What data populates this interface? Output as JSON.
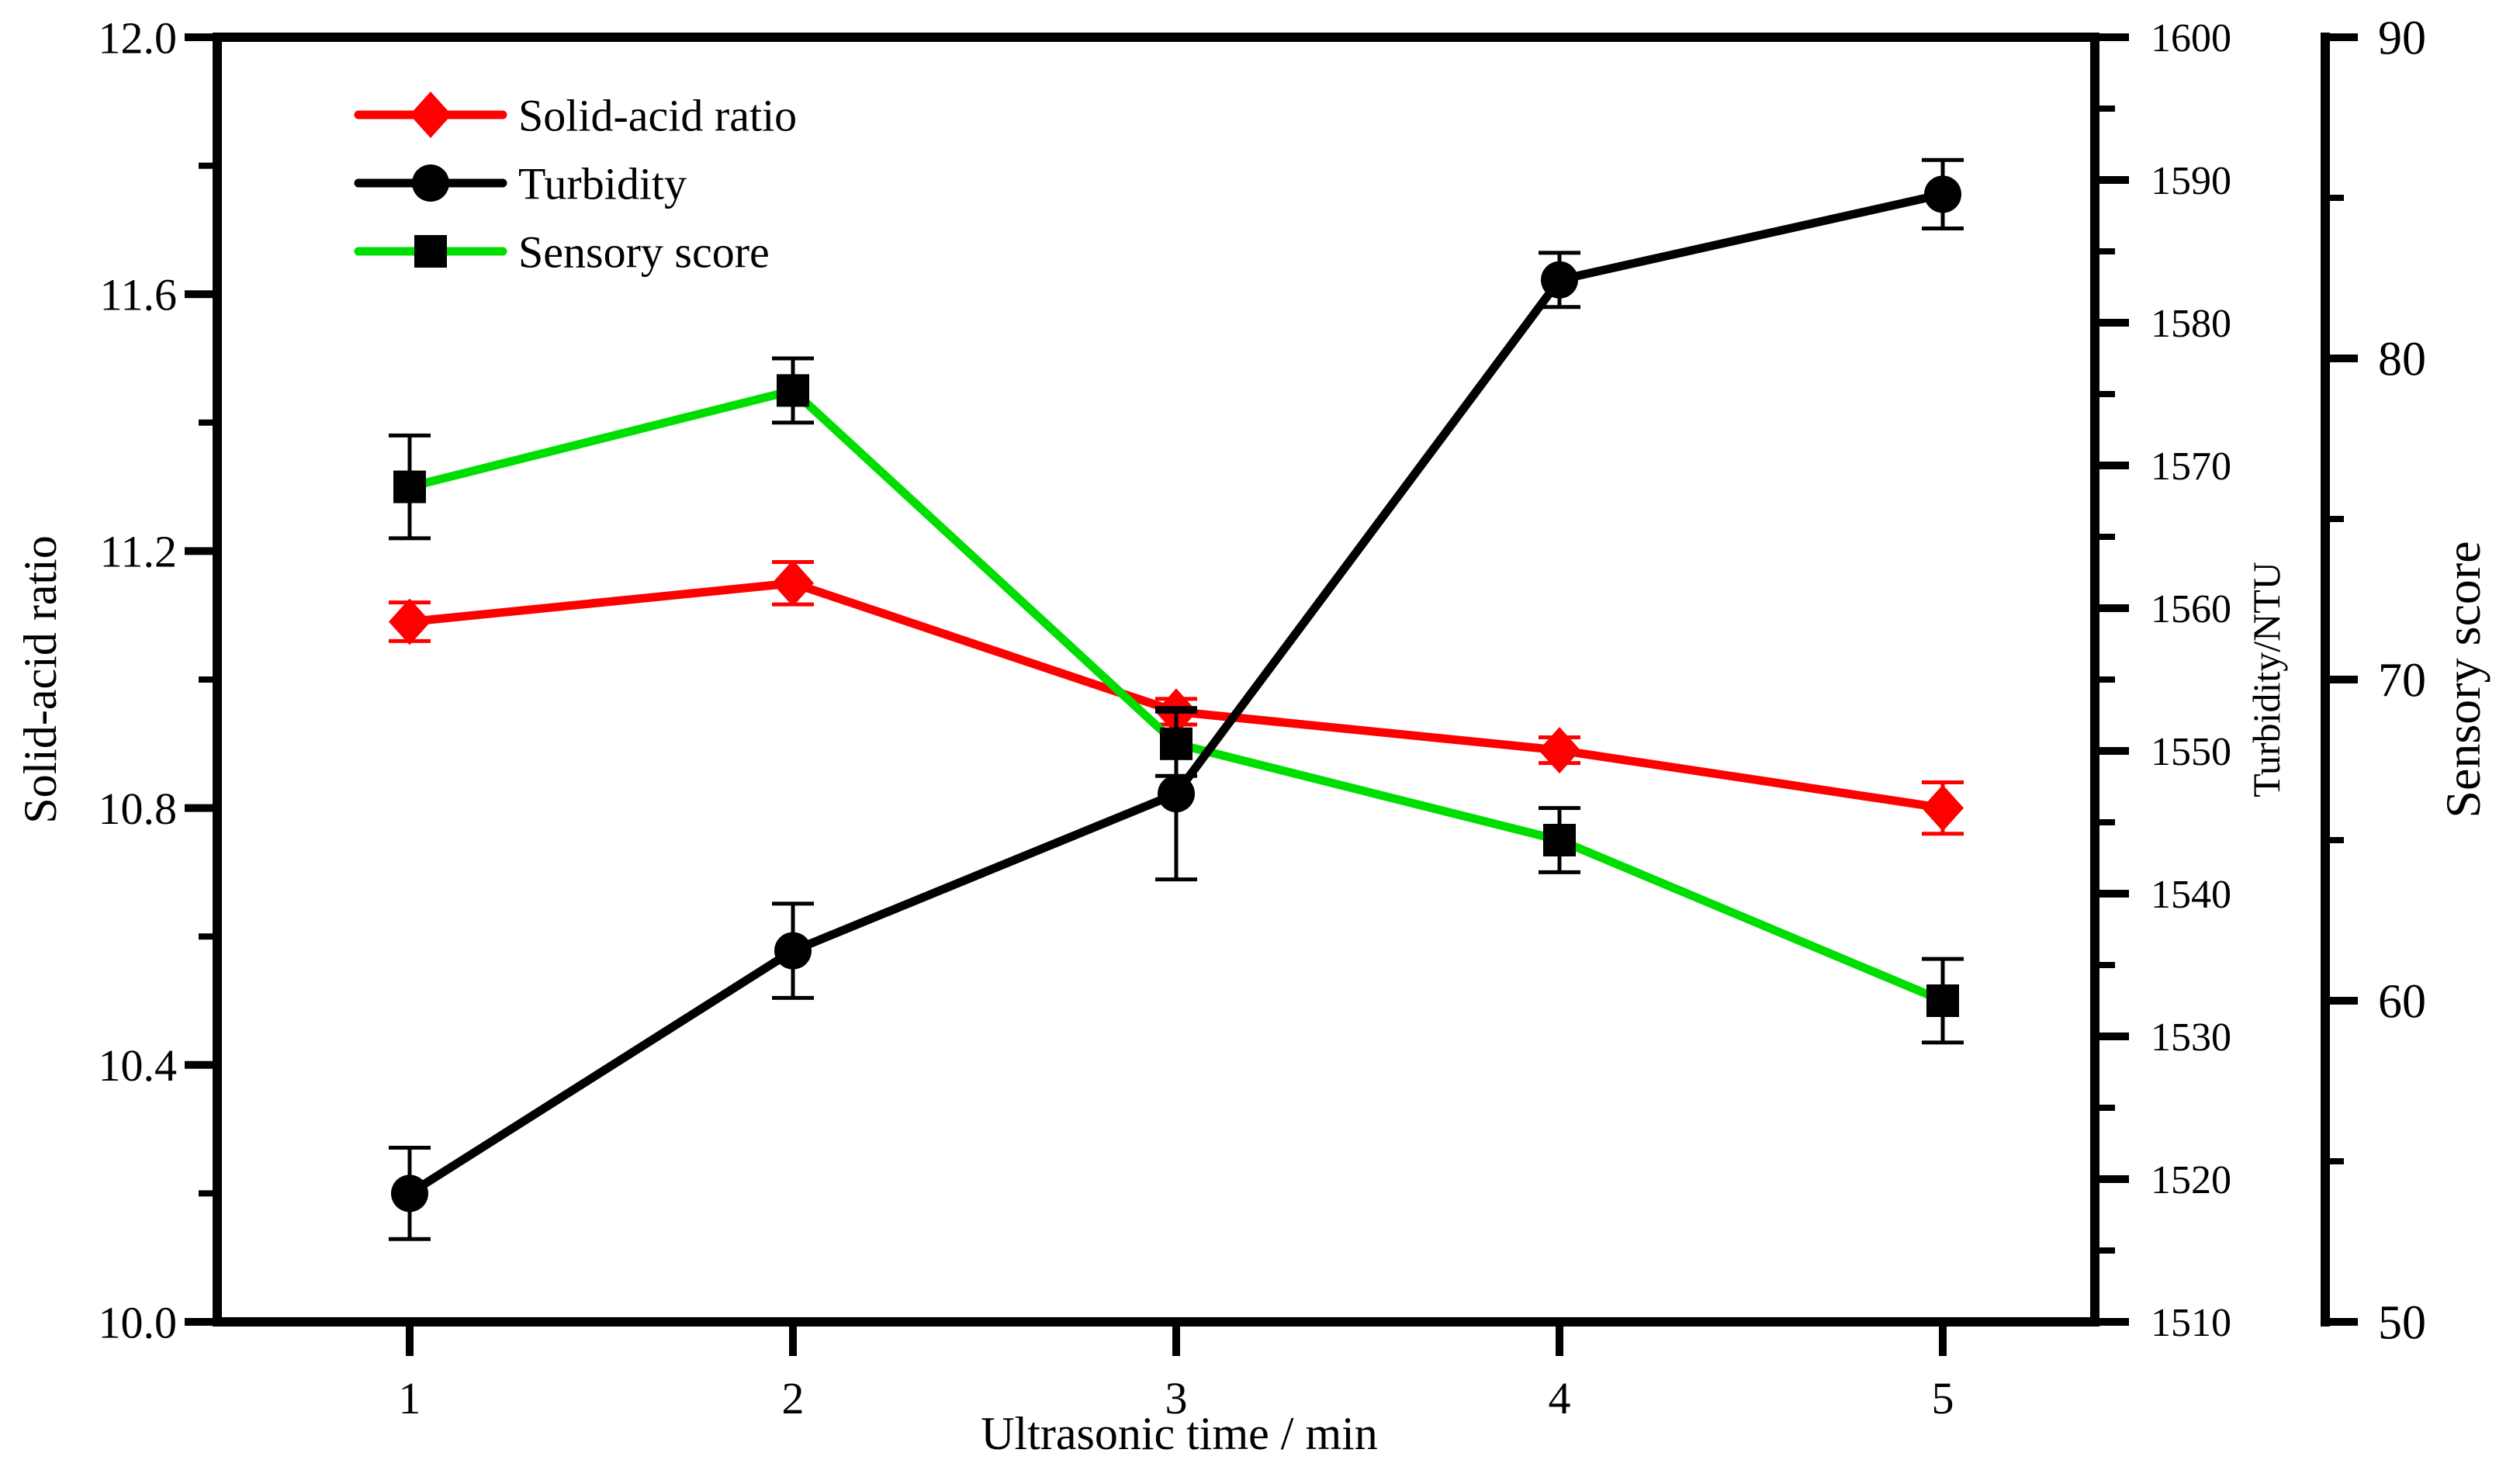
{
  "chart_data": {
    "type": "line",
    "title": "",
    "xlabel": "Ultrasonic time / min",
    "x": [
      1,
      2,
      3,
      4,
      5
    ],
    "x_tick_labels": [
      "1",
      "2",
      "3",
      "4",
      "5"
    ],
    "axes": {
      "left": {
        "label": "Solid-acid ratio",
        "range": [
          10.0,
          12.0
        ],
        "major_ticks": [
          10.0,
          10.4,
          10.8,
          11.2,
          11.6,
          12.0
        ],
        "major_tick_labels": [
          "10.0",
          "10.4",
          "10.8",
          "11.2",
          "11.6",
          "12.0"
        ],
        "minor_ticks": [
          10.2,
          10.6,
          11.0,
          11.4,
          11.8
        ]
      },
      "turbidity": {
        "label": "Turbidity/NTU",
        "range": [
          1510,
          1600
        ],
        "major_ticks": [
          1510,
          1520,
          1530,
          1540,
          1550,
          1560,
          1570,
          1580,
          1590,
          1600
        ],
        "major_tick_labels": [
          "1510",
          "1520",
          "1530",
          "1540",
          "1550",
          "1560",
          "1570",
          "1580",
          "1590",
          "1600"
        ],
        "minor_ticks": [
          1515,
          1525,
          1535,
          1545,
          1555,
          1565,
          1575,
          1585,
          1595
        ]
      },
      "sensory": {
        "label": "Sensory score",
        "range": [
          50,
          90
        ],
        "major_ticks": [
          50,
          60,
          70,
          80,
          90
        ],
        "major_tick_labels": [
          "50",
          "60",
          "70",
          "80",
          "90"
        ],
        "minor_ticks": [
          55,
          65,
          75,
          85
        ]
      }
    },
    "series": [
      {
        "name": "Solid-acid ratio",
        "axis": "left",
        "color": "#ff0000",
        "marker": "diamond",
        "marker_color": "#ff0000",
        "values": [
          11.09,
          11.15,
          10.95,
          10.89,
          10.8
        ],
        "errors": [
          0.03,
          0.033,
          0.02,
          0.02,
          0.04
        ]
      },
      {
        "name": "Turbidity",
        "axis": "turbidity",
        "color": "#000000",
        "marker": "circle",
        "marker_color": "#000000",
        "values": [
          1519,
          1536,
          1547,
          1583,
          1589
        ],
        "errors": [
          3.2,
          3.3,
          6.0,
          1.9,
          2.4
        ]
      },
      {
        "name": "Sensory score",
        "axis": "sensory",
        "color": "#00dd00",
        "marker": "square",
        "marker_color": "#000000",
        "values": [
          76,
          79,
          68,
          65,
          60
        ],
        "errors": [
          1.6,
          1.0,
          1.0,
          1.0,
          1.3
        ]
      }
    ],
    "legend": {
      "position": "top-left-inside",
      "items": [
        "Solid-acid ratio",
        "Turbidity",
        "Sensory score"
      ]
    }
  }
}
